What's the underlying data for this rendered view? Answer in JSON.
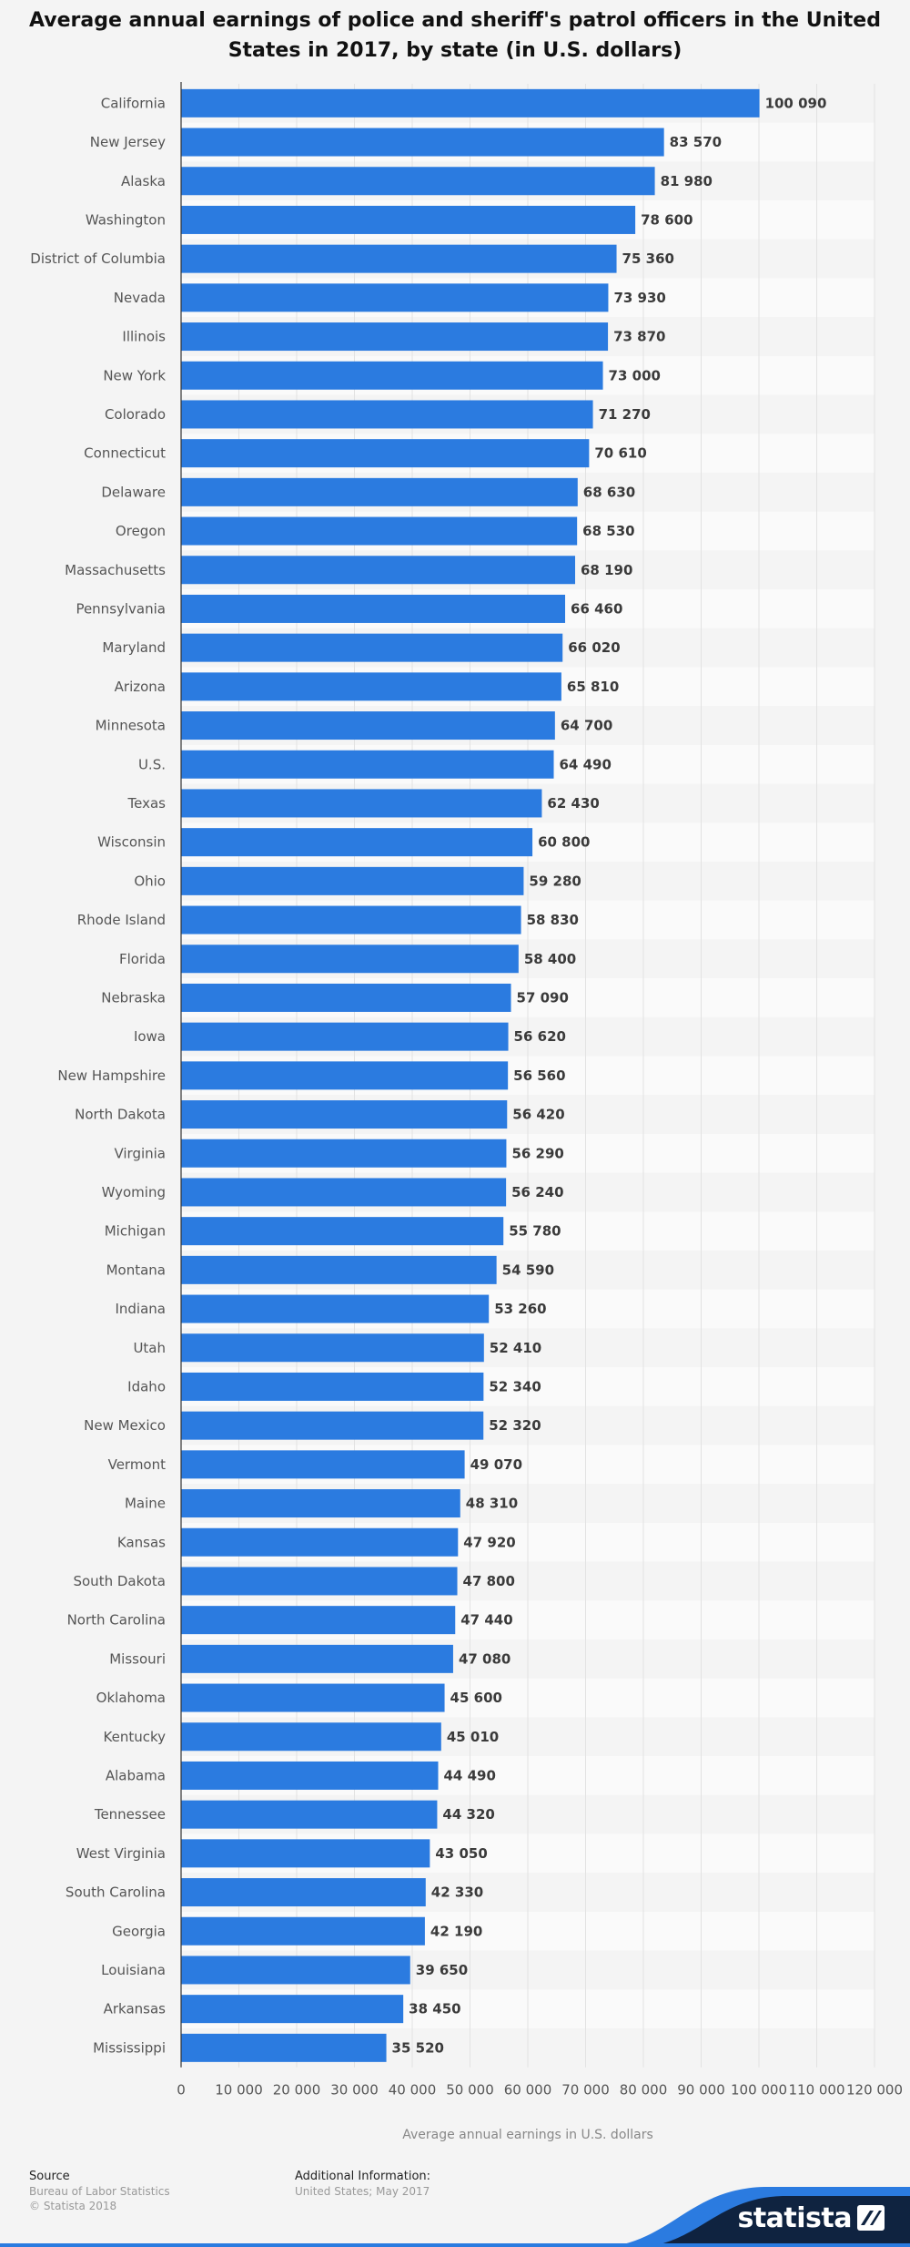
{
  "chart_data": {
    "type": "bar",
    "orientation": "horizontal",
    "title": "Average annual earnings of police and sheriff's patrol officers in the United States in 2017, by state (in U.S. dollars)",
    "xlabel": "Average annual earnings in U.S. dollars",
    "xlim": [
      0,
      120000
    ],
    "xticks": [
      0,
      10000,
      20000,
      30000,
      40000,
      50000,
      60000,
      70000,
      80000,
      90000,
      100000,
      110000,
      120000
    ],
    "xtick_labels": [
      "0",
      "10 000",
      "20 000",
      "30 000",
      "40 000",
      "50 000",
      "60 000",
      "70 000",
      "80 000",
      "90 000",
      "100 000",
      "110 000",
      "120 000"
    ],
    "grid": true,
    "bar_color": "#2b7be0",
    "categories": [
      "California",
      "New Jersey",
      "Alaska",
      "Washington",
      "District of Columbia",
      "Nevada",
      "Illinois",
      "New York",
      "Colorado",
      "Connecticut",
      "Delaware",
      "Oregon",
      "Massachusetts",
      "Pennsylvania",
      "Maryland",
      "Arizona",
      "Minnesota",
      "U.S.",
      "Texas",
      "Wisconsin",
      "Ohio",
      "Rhode Island",
      "Florida",
      "Nebraska",
      "Iowa",
      "New Hampshire",
      "North Dakota",
      "Virginia",
      "Wyoming",
      "Michigan",
      "Montana",
      "Indiana",
      "Utah",
      "Idaho",
      "New Mexico",
      "Vermont",
      "Maine",
      "Kansas",
      "South Dakota",
      "North Carolina",
      "Missouri",
      "Oklahoma",
      "Kentucky",
      "Alabama",
      "Tennessee",
      "West Virginia",
      "South Carolina",
      "Georgia",
      "Louisiana",
      "Arkansas",
      "Mississippi"
    ],
    "values": [
      100090,
      83570,
      81980,
      78600,
      75360,
      73930,
      73870,
      73000,
      71270,
      70610,
      68630,
      68530,
      68190,
      66460,
      66020,
      65810,
      64700,
      64490,
      62430,
      60800,
      59280,
      58830,
      58400,
      57090,
      56620,
      56560,
      56420,
      56290,
      56240,
      55780,
      54590,
      53260,
      52410,
      52340,
      52320,
      49070,
      48310,
      47920,
      47800,
      47440,
      47080,
      45600,
      45010,
      44490,
      44320,
      43050,
      42330,
      42190,
      39650,
      38450,
      35520
    ],
    "value_labels": [
      "100 090",
      "83 570",
      "81 980",
      "78 600",
      "75 360",
      "73 930",
      "73 870",
      "73 000",
      "71 270",
      "70 610",
      "68 630",
      "68 530",
      "68 190",
      "66 460",
      "66 020",
      "65 810",
      "64 700",
      "64 490",
      "62 430",
      "60 800",
      "59 280",
      "58 830",
      "58 400",
      "57 090",
      "56 620",
      "56 560",
      "56 420",
      "56 290",
      "56 240",
      "55 780",
      "54 590",
      "53 260",
      "52 410",
      "52 340",
      "52 320",
      "49 070",
      "48 310",
      "47 920",
      "47 800",
      "47 440",
      "47 080",
      "45 600",
      "45 010",
      "44 490",
      "44 320",
      "43 050",
      "42 330",
      "42 190",
      "39 650",
      "38 450",
      "35 520"
    ]
  },
  "footer": {
    "source_heading": "Source",
    "source_lines": [
      "Bureau of Labor Statistics",
      "© Statista 2018"
    ],
    "info_heading": "Additional Information:",
    "info_lines": [
      "United States; May 2017"
    ],
    "brand": "statista"
  }
}
